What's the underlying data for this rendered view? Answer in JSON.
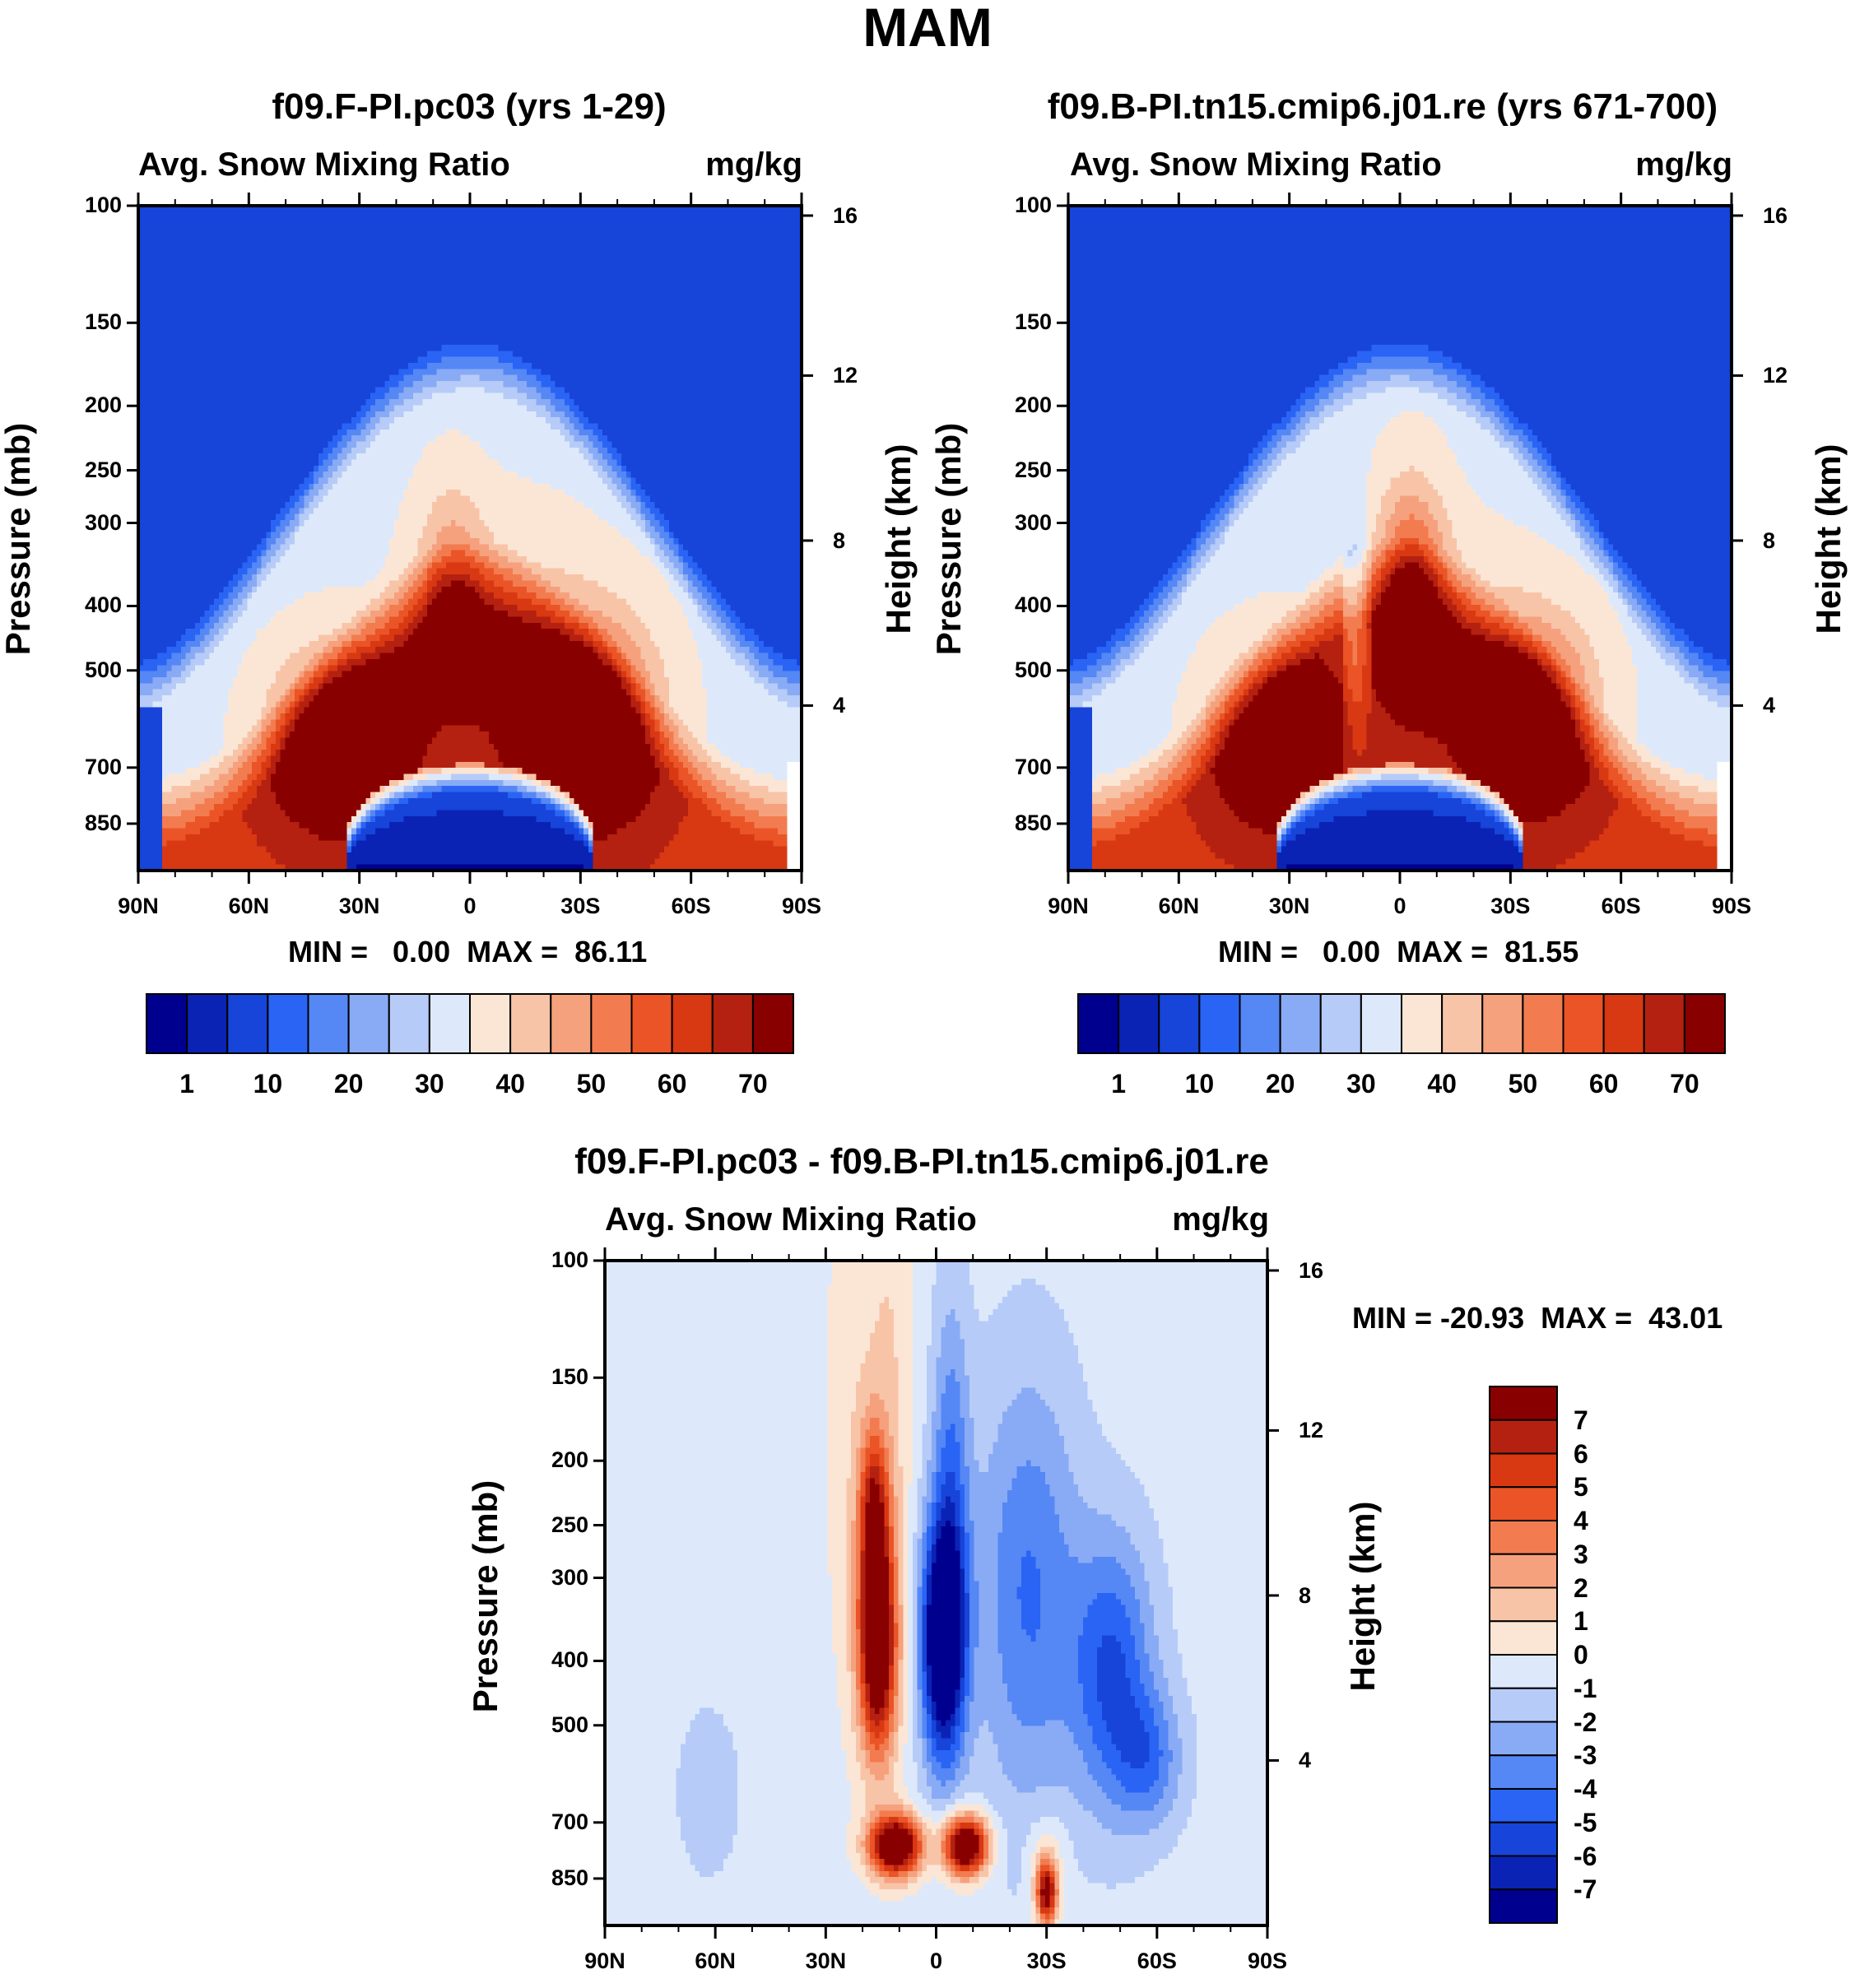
{
  "figure": {
    "title": "MAM"
  },
  "panels": [
    {
      "title": "f09.F-PI.pc03 (yrs 1-29)",
      "left_label": "Avg. Snow Mixing Ratio",
      "right_label": "mg/kg",
      "ylabel": "Pressure (mb)",
      "ylabel2": "Height (km)",
      "yticks": [
        "100",
        "150",
        "200",
        "250",
        "300",
        "400",
        "500",
        "700",
        "850"
      ],
      "yticks2": [
        "16",
        "12",
        "8",
        "4"
      ],
      "xticks": [
        "90N",
        "60N",
        "30N",
        "0",
        "30S",
        "60S",
        "90S"
      ],
      "min_text": "MIN =   0.00",
      "max_text": "MAX =  86.11"
    },
    {
      "title": "f09.B-PI.tn15.cmip6.j01.re (yrs 671-700)",
      "left_label": "Avg. Snow Mixing Ratio",
      "right_label": "mg/kg",
      "ylabel": "Pressure (mb)",
      "ylabel2": "Height (km)",
      "yticks": [
        "100",
        "150",
        "200",
        "250",
        "300",
        "400",
        "500",
        "700",
        "850"
      ],
      "yticks2": [
        "16",
        "12",
        "8",
        "4"
      ],
      "xticks": [
        "90N",
        "60N",
        "30N",
        "0",
        "30S",
        "60S",
        "90S"
      ],
      "min_text": "MIN =   0.00",
      "max_text": "MAX =  81.55"
    },
    {
      "title": "f09.F-PI.pc03 - f09.B-PI.tn15.cmip6.j01.re",
      "left_label": "Avg. Snow Mixing Ratio",
      "right_label": "mg/kg",
      "ylabel": "Pressure (mb)",
      "ylabel2": "Height (km)",
      "yticks": [
        "100",
        "150",
        "200",
        "250",
        "300",
        "400",
        "500",
        "700",
        "850"
      ],
      "yticks2": [
        "16",
        "12",
        "8",
        "4"
      ],
      "xticks": [
        "90N",
        "60N",
        "30N",
        "0",
        "30S",
        "60S",
        "90S"
      ],
      "minmax_text": "MIN = -20.93  MAX =  43.01"
    }
  ],
  "colorbars": {
    "abs_labels": [
      "1",
      "10",
      "20",
      "30",
      "40",
      "50",
      "60",
      "70"
    ],
    "abs_colors": [
      "#00008f",
      "#0a23b5",
      "#1744d9",
      "#2a64f5",
      "#5587f5",
      "#89abf5",
      "#b6cbf7",
      "#dde9fb",
      "#fbe6d6",
      "#f8c4a8",
      "#f6a17d",
      "#f27c4f",
      "#ea5426",
      "#d83812",
      "#b52110",
      "#890000"
    ],
    "diff_labels": [
      "7",
      "6",
      "5",
      "4",
      "3",
      "2",
      "1",
      "0",
      "-1",
      "-2",
      "-3",
      "-4",
      "-5",
      "-6",
      "-7"
    ],
    "diff_colors": [
      "#890000",
      "#b52110",
      "#d83812",
      "#ea5426",
      "#f27c4f",
      "#f6a17d",
      "#f8c4a8",
      "#fbe6d6",
      "#dde9fb",
      "#b6cbf7",
      "#89abf5",
      "#5587f5",
      "#2a64f5",
      "#1744d9",
      "#0a23b5",
      "#00008f"
    ]
  },
  "chart_data": [
    {
      "type": "heatmap",
      "title": "f09.F-PI.pc03 (yrs 1-29)",
      "variable": "Avg. Snow Mixing Ratio",
      "units": "mg/kg",
      "x_range": [
        "90N",
        "90S"
      ],
      "y_range_mb": [
        1000,
        100
      ],
      "min": 0.0,
      "max": 86.11,
      "features": [
        {
          "lat": 35,
          "p": 650,
          "value": 78
        },
        {
          "lat": -32,
          "p": 630,
          "value": 80
        },
        {
          "lat": 5,
          "p": 420,
          "value": 72
        },
        {
          "lat": 0,
          "p": 870,
          "value": 0
        }
      ]
    },
    {
      "type": "heatmap",
      "title": "f09.B-PI.tn15.cmip6.j01.re (yrs 671-700)",
      "variable": "Avg. Snow Mixing Ratio",
      "units": "mg/kg",
      "x_range": [
        "90N",
        "90S"
      ],
      "y_range_mb": [
        1000,
        100
      ],
      "min": 0.0,
      "max": 81.55,
      "features": [
        {
          "lat": 32,
          "p": 650,
          "value": 74
        },
        {
          "lat": -35,
          "p": 620,
          "value": 78
        },
        {
          "lat": -2,
          "p": 450,
          "value": 80
        },
        {
          "lat": 0,
          "p": 870,
          "value": 0
        }
      ]
    },
    {
      "type": "heatmap",
      "title": "f09.F-PI.pc03 - f09.B-PI.tn15.cmip6.j01.re",
      "variable": "Avg. Snow Mixing Ratio",
      "units": "mg/kg",
      "x_range": [
        "90N",
        "90S"
      ],
      "y_range_mb": [
        1000,
        100
      ],
      "min": -20.93,
      "max": 43.01,
      "features": [
        {
          "lat": 15,
          "p": 450,
          "value": 7
        },
        {
          "lat": -2,
          "p": 400,
          "value": -7
        },
        {
          "lat": 10,
          "p": 700,
          "value": 7
        },
        {
          "lat": -10,
          "p": 700,
          "value": 7
        },
        {
          "lat": -30,
          "p": 450,
          "value": -4
        },
        {
          "lat": -50,
          "p": 500,
          "value": -5
        }
      ]
    }
  ]
}
